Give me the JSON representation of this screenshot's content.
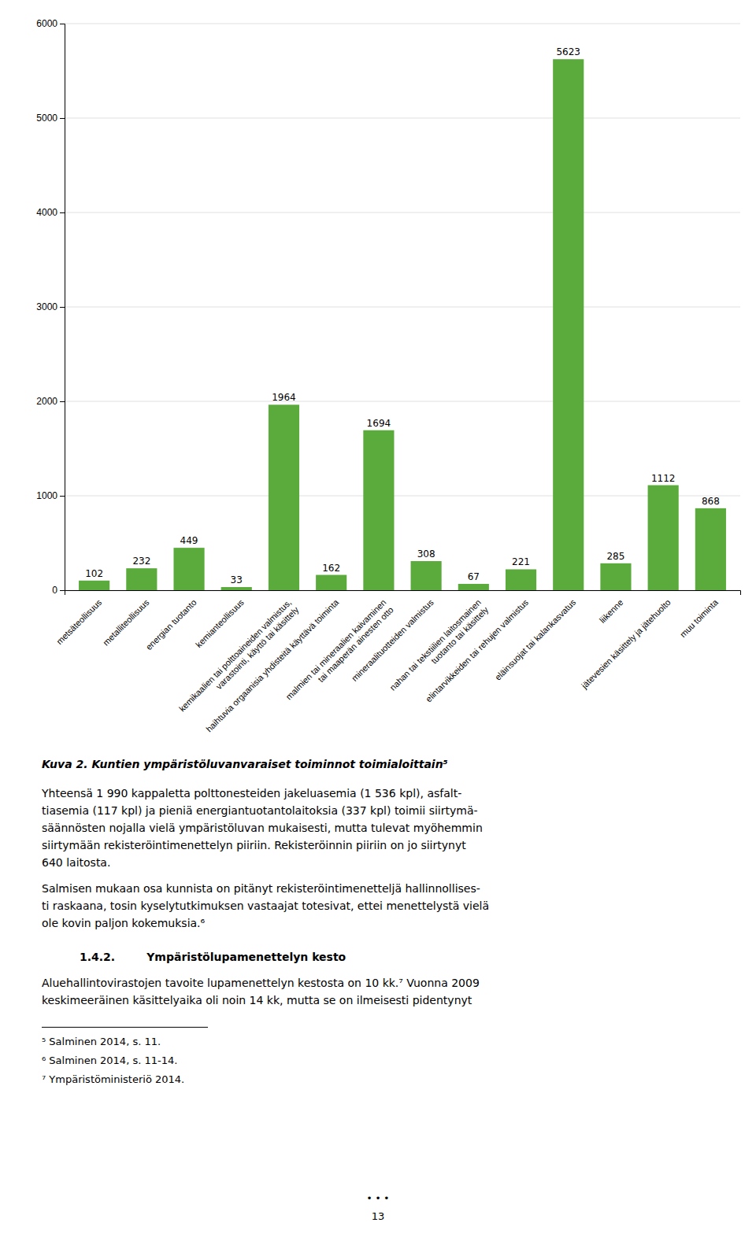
{
  "chart_data": {
    "type": "bar",
    "title": "Kuva 2. Kuntien ympäristöluvanvaraiset toiminnot toimialoittain⁵",
    "categories": [
      "metsäteollisuus",
      "metalliteollisuus",
      "energian tuotanto",
      "kemianteollisuus",
      "kemikaalien tai polttoaineiden valmistus,\nvarastointi, käyttö tai käsittely",
      "haihtuvia orgaanisia yhdisteitä käyttävä toiminta",
      "malmien tai mineraalien kaivaminen\ntai maaperän ainesten otto",
      "mineraalituotteiden valmistus",
      "nahan tai tekstiilien laitosmainen\ntuotanto tai käsittely",
      "elintarvikkeiden tai rehujen valmistus",
      "eläinsuojat tai kalankasvatus",
      "liikenne",
      "jätevesien käsittely ja jätehuolto",
      "muu toiminta"
    ],
    "values": [
      102,
      232,
      449,
      33,
      1964,
      162,
      1694,
      308,
      67,
      221,
      5623,
      285,
      1112,
      868
    ],
    "color": "#5aaa3c",
    "ylim": [
      0,
      6000
    ],
    "yticks": [
      0,
      1000,
      2000,
      3000,
      4000,
      5000,
      6000
    ],
    "grid": true,
    "data_labels": true
  },
  "body_text": [
    "Yhteensä 1 990 kappaletta polttonesteiden jakeluasemia (1 536 kpl), asfalt-\ntiasemia (117 kpl) ja pieniä energiantuotantolaitoksia (337 kpl) toimii siirtymä-\nsäännösten nojalla vielä ympäristöluvan mukaisesti, mutta tulevat myöhemmin\nsiirtymään rekisteröintimenettelyn piiriin. Rekisteröinnin piiriin on jo siirtynyt\n640 laitosta.",
    "Salmisen mukaan osa kunnista on pitänyt rekisteröintimenetteljä hallinnollises-\nti raskaana, tosin kyselytutkimuksen vastaajat totesivat, ettei menettelystä vielä\nole kovin paljon kokemuksia.⁶"
  ],
  "section_number": "1.4.2.",
  "section_title": "Ympäristölupamenettelyn kesto",
  "section_text": "Aluehallintovirastojen tavoite lupamenettelyn kestosta on 10 kk.⁷ Vuonna 2009\nkeskimeeräinen käsittelyaika oli noin 14 kk, mutta se on ilmeisesti pidentynyt",
  "footnotes": [
    "⁵ Salminen 2014, s. 11.",
    "⁶ Salminen 2014, s. 11-14.",
    "⁷ Ympäristöministeriö 2014."
  ],
  "dots": "• • •",
  "page_number": "13"
}
